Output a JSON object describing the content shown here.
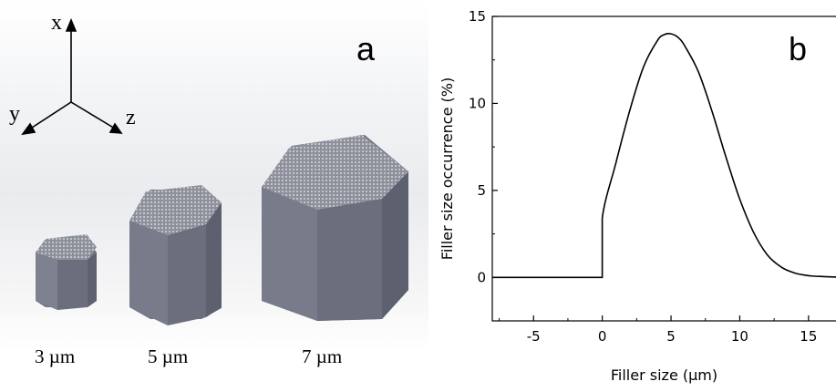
{
  "panel_a": {
    "label": "a",
    "axes": {
      "x": "x",
      "y": "y",
      "z": "z"
    },
    "sizes": [
      "3 µm",
      "5 µm",
      "7 µm"
    ],
    "colors": {
      "prism_front": "#6b6f7f",
      "prism_side": "#8a8e9c",
      "prism_top": "#9a9ca6",
      "background_top": "#f2f3f5"
    }
  },
  "panel_b": {
    "label": "b"
  },
  "chart_data": {
    "type": "line",
    "title": "",
    "xlabel": "Filler size (µm)",
    "ylabel": "Filler size occurrence (%)",
    "xlim": [
      -8,
      17
    ],
    "ylim": [
      -2.5,
      15
    ],
    "xticks": [
      -5,
      0,
      5,
      10,
      15
    ],
    "yticks": [
      0,
      5,
      10,
      15
    ],
    "grid": false,
    "series": [
      {
        "x": [
          -8,
          -4,
          0,
          0,
          1,
          2,
          3,
          4,
          4.5,
          5,
          5.5,
          6,
          7,
          8,
          9,
          10,
          11,
          12,
          13,
          14,
          15,
          16,
          17
        ],
        "y": [
          0,
          0,
          0,
          3.4,
          6.6,
          9.6,
          12.1,
          13.6,
          13.95,
          14.0,
          13.8,
          13.3,
          11.8,
          9.5,
          6.9,
          4.5,
          2.6,
          1.3,
          0.6,
          0.25,
          0.1,
          0.05,
          0.02
        ]
      }
    ],
    "color": "#000000"
  }
}
